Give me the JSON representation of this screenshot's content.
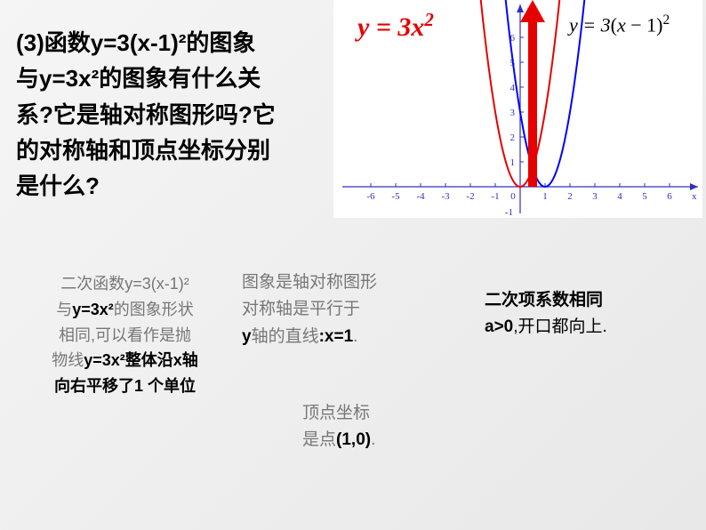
{
  "question": {
    "line1": "(3)函数y=3(x-1)²的图象",
    "line2": "与y=3x²的图象有什么关",
    "line3": "系?它是轴对称图形吗?它",
    "line4": "的对称轴和顶点坐标分别",
    "line5": "是什么?"
  },
  "chart": {
    "eq_red_prefix": "y = 3",
    "eq_red_var": "x",
    "eq_red_exp": "2",
    "eq_blue_prefix": "y = 3",
    "eq_blue_paren": "(x − 1)",
    "eq_blue_exp": "2",
    "x_min": -6,
    "x_max": 6,
    "y_min": -1,
    "y_max": 6,
    "x_ticks": [
      -6,
      -5,
      -4,
      -3,
      -2,
      -1,
      1,
      2,
      3,
      4,
      5,
      6
    ],
    "y_ticks": [
      1,
      2,
      3,
      4,
      5,
      6
    ],
    "red_curve_color": "#e60000",
    "blue_curve_color": "#0000ff",
    "axis_color": "#3030c0",
    "tick_font_size": 11,
    "background": "#ffffff"
  },
  "ans1": {
    "l1": "二次函数y=3(x-1)²",
    "l2a": "与",
    "l2b": "y=3x²",
    "l2c": "的图象形状",
    "l3": "相同,可以看作是抛",
    "l4a": "物线",
    "l4b": "y=3x²整体沿x轴",
    "l5": "向右平移了1 个单位"
  },
  "ans2": {
    "l1": "图象是轴对称图形",
    "l2": "对称轴是平行于",
    "l3a": "y",
    "l3b": "轴的直线",
    "l3c": ":x=1",
    "l3d": "."
  },
  "ans3": {
    "l1": "二次项系数相同",
    "l2a": "a>0",
    "l2b": ",开口都向上."
  },
  "vertex": {
    "l1": "顶点坐标",
    "l2a": "是点",
    "l2b": "(1,0)",
    "l2c": "."
  }
}
